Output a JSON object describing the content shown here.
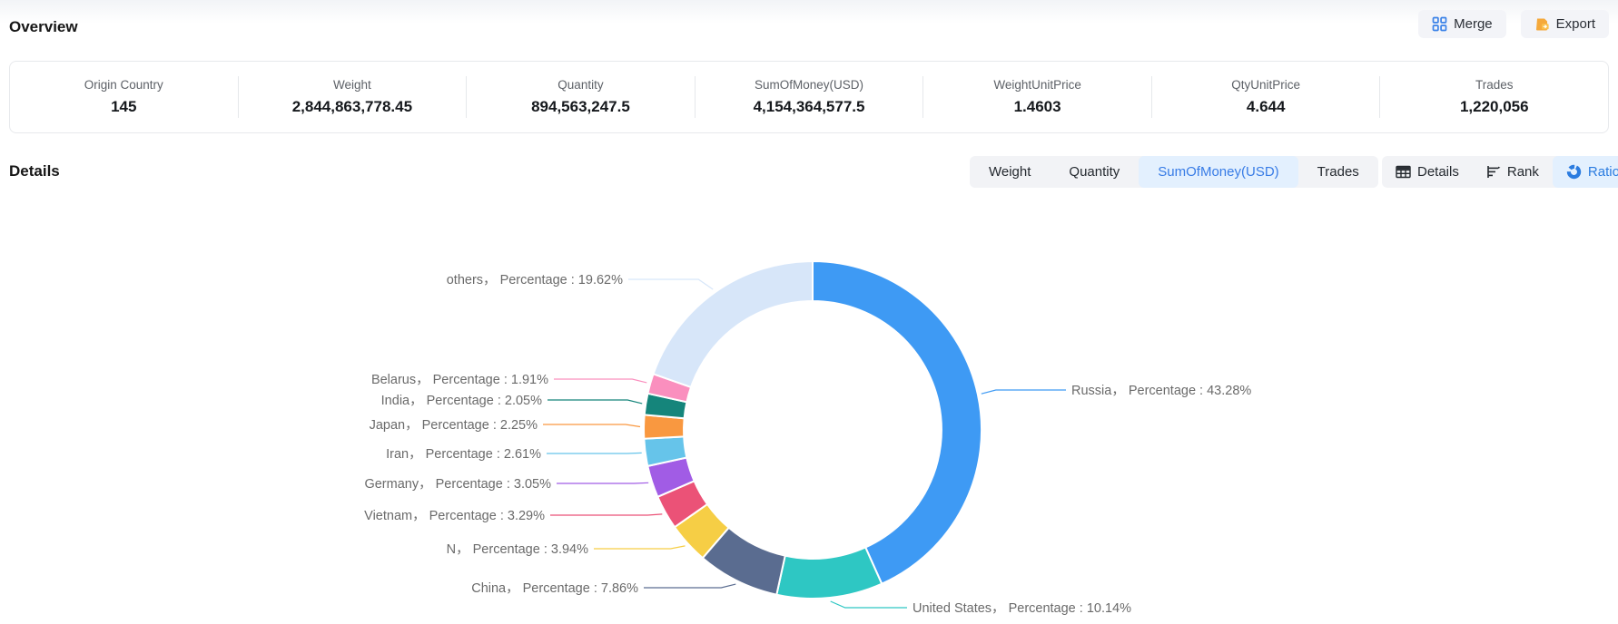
{
  "overview": {
    "title": "Overview",
    "merge_label": "Merge",
    "export_label": "Export",
    "stats": [
      {
        "label": "Origin Country",
        "value": "145"
      },
      {
        "label": "Weight",
        "value": "2,844,863,778.45"
      },
      {
        "label": "Quantity",
        "value": "894,563,247.5"
      },
      {
        "label": "SumOfMoney(USD)",
        "value": "4,154,364,577.5"
      },
      {
        "label": "WeightUnitPrice",
        "value": "1.4603"
      },
      {
        "label": "QtyUnitPrice",
        "value": "4.644"
      },
      {
        "label": "Trades",
        "value": "1,220,056"
      }
    ]
  },
  "details": {
    "title": "Details",
    "metric_tabs": [
      {
        "label": "Weight",
        "active": false
      },
      {
        "label": "Quantity",
        "active": false
      },
      {
        "label": "SumOfMoney(USD)",
        "active": true
      },
      {
        "label": "Trades",
        "active": false
      }
    ],
    "view_tabs": [
      {
        "label": "Details",
        "icon": "table-icon",
        "active": false
      },
      {
        "label": "Rank",
        "icon": "rank-icon",
        "active": false
      },
      {
        "label": "Ratio",
        "icon": "donut-icon",
        "active": true
      }
    ]
  },
  "chart_data": {
    "type": "pie",
    "donut": true,
    "start_angle": "top",
    "direction": "clockwise",
    "label_format": "{name}，  Percentage : {value}%",
    "slices": [
      {
        "name": "Russia",
        "value": 43.28,
        "color": "#3e9af4"
      },
      {
        "name": "United States",
        "value": 10.14,
        "color": "#2ec7c3"
      },
      {
        "name": "China",
        "value": 7.86,
        "color": "#5a6c90"
      },
      {
        "name": "N",
        "value": 3.94,
        "color": "#f6ce45"
      },
      {
        "name": "Vietnam",
        "value": 3.29,
        "color": "#eb5277"
      },
      {
        "name": "Germany",
        "value": 3.05,
        "color": "#a15ce5"
      },
      {
        "name": "Iran",
        "value": 2.61,
        "color": "#66c4ea"
      },
      {
        "name": "Japan",
        "value": 2.25,
        "color": "#f99840"
      },
      {
        "name": "India",
        "value": 2.05,
        "color": "#15857b"
      },
      {
        "name": "Belarus",
        "value": 1.91,
        "color": "#fa8fbe"
      },
      {
        "name": "others",
        "value": 19.62,
        "color": "#d7e6f9"
      }
    ]
  },
  "colors": {
    "accent_blue": "#3a7fe8",
    "tab_active_bg": "#e3f0fe",
    "group_bg": "#f2f3f6",
    "merge_icon": "#3b82e8",
    "export_icon": "#f5a93b",
    "label_text": "#6a6a6a"
  }
}
